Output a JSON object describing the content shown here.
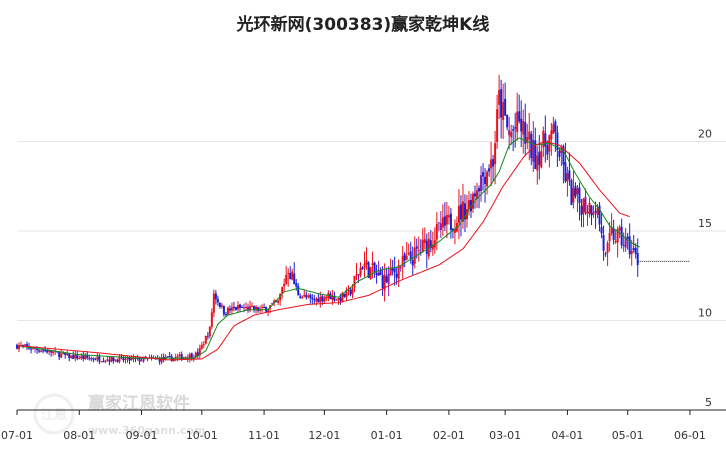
{
  "chart_data": {
    "type": "candlestick",
    "title": "光环新网(300383)赢家乾坤K线",
    "ylim": [
      5,
      25
    ],
    "y_ticks": [
      5,
      10,
      15,
      20
    ],
    "x_ticks": [
      "07-01",
      "08-01",
      "09-01",
      "10-01",
      "11-01",
      "12-01",
      "01-01",
      "02-01",
      "03-01",
      "04-01",
      "05-01",
      "06-01"
    ],
    "x_tick_day_index": [
      0,
      31,
      62,
      92,
      123,
      153,
      184,
      215,
      243,
      274,
      304,
      335
    ],
    "days_span": 340,
    "up_color": "#e8121c",
    "down_color": "#1721d6",
    "neutral_color": "#8e1aa6",
    "ma_short_color": "#138a1a",
    "ma_long_color": "#e8121c",
    "series": [
      {
        "name": "price",
        "anchors": [
          [
            0,
            8.6
          ],
          [
            15,
            8.3
          ],
          [
            25,
            8.0
          ],
          [
            35,
            7.9
          ],
          [
            55,
            7.8
          ],
          [
            75,
            7.85
          ],
          [
            90,
            8.1
          ],
          [
            96,
            9.5
          ],
          [
            98,
            11.5
          ],
          [
            103,
            10.5
          ],
          [
            110,
            10.7
          ],
          [
            122,
            10.6
          ],
          [
            130,
            11.0
          ],
          [
            135,
            13.0
          ],
          [
            140,
            11.5
          ],
          [
            147,
            11.1
          ],
          [
            155,
            11.4
          ],
          [
            160,
            11.2
          ],
          [
            166,
            11.6
          ],
          [
            172,
            13.2
          ],
          [
            178,
            12.6
          ],
          [
            183,
            12.2
          ],
          [
            190,
            13.0
          ],
          [
            198,
            13.6
          ],
          [
            210,
            15.0
          ],
          [
            216,
            15.5
          ],
          [
            225,
            16.5
          ],
          [
            230,
            17.8
          ],
          [
            237,
            19.0
          ],
          [
            240,
            22.3
          ],
          [
            245,
            20.3
          ],
          [
            250,
            21.0
          ],
          [
            254,
            20.0
          ],
          [
            258,
            19.2
          ],
          [
            265,
            20.2
          ],
          [
            268,
            20.3
          ],
          [
            272,
            18.5
          ],
          [
            276,
            17.0
          ],
          [
            280,
            16.6
          ],
          [
            285,
            16.4
          ],
          [
            288,
            16.5
          ],
          [
            290,
            15.5
          ],
          [
            293,
            13.4
          ],
          [
            296,
            14.8
          ],
          [
            300,
            14.6
          ],
          [
            305,
            14.1
          ],
          [
            309,
            13.3
          ]
        ]
      },
      {
        "name": "ma_short",
        "anchors": [
          [
            0,
            8.6
          ],
          [
            30,
            8.1
          ],
          [
            60,
            7.9
          ],
          [
            88,
            7.9
          ],
          [
            94,
            8.3
          ],
          [
            100,
            9.8
          ],
          [
            105,
            10.3
          ],
          [
            115,
            10.6
          ],
          [
            125,
            10.6
          ],
          [
            133,
            11.6
          ],
          [
            140,
            11.8
          ],
          [
            150,
            11.5
          ],
          [
            160,
            11.3
          ],
          [
            170,
            12.2
          ],
          [
            180,
            12.8
          ],
          [
            190,
            13.0
          ],
          [
            200,
            13.7
          ],
          [
            210,
            14.4
          ],
          [
            220,
            15.3
          ],
          [
            228,
            16.7
          ],
          [
            236,
            17.6
          ],
          [
            240,
            18.3
          ],
          [
            245,
            19.8
          ],
          [
            250,
            20.2
          ],
          [
            258,
            19.8
          ],
          [
            265,
            19.9
          ],
          [
            272,
            19.5
          ],
          [
            278,
            18.2
          ],
          [
            285,
            16.9
          ],
          [
            290,
            16.2
          ],
          [
            295,
            15.3
          ],
          [
            300,
            14.9
          ],
          [
            305,
            14.4
          ],
          [
            310,
            14.1
          ]
        ]
      },
      {
        "name": "ma_long",
        "anchors": [
          [
            0,
            8.6
          ],
          [
            40,
            8.2
          ],
          [
            75,
            7.8
          ],
          [
            92,
            7.85
          ],
          [
            100,
            8.4
          ],
          [
            108,
            9.7
          ],
          [
            118,
            10.3
          ],
          [
            130,
            10.6
          ],
          [
            145,
            10.9
          ],
          [
            160,
            11.0
          ],
          [
            175,
            11.4
          ],
          [
            190,
            12.2
          ],
          [
            210,
            13.1
          ],
          [
            222,
            14.0
          ],
          [
            232,
            15.5
          ],
          [
            242,
            17.5
          ],
          [
            252,
            19.1
          ],
          [
            258,
            19.8
          ],
          [
            263,
            20.0
          ],
          [
            270,
            19.8
          ],
          [
            280,
            18.8
          ],
          [
            290,
            17.3
          ],
          [
            300,
            16.0
          ],
          [
            305,
            15.8
          ]
        ]
      }
    ],
    "last_close_line_end_index": 335
  },
  "watermark": {
    "brand": "赢家江恩软件",
    "url": "www.360gann.com",
    "logo_glyphs": "江恩"
  }
}
